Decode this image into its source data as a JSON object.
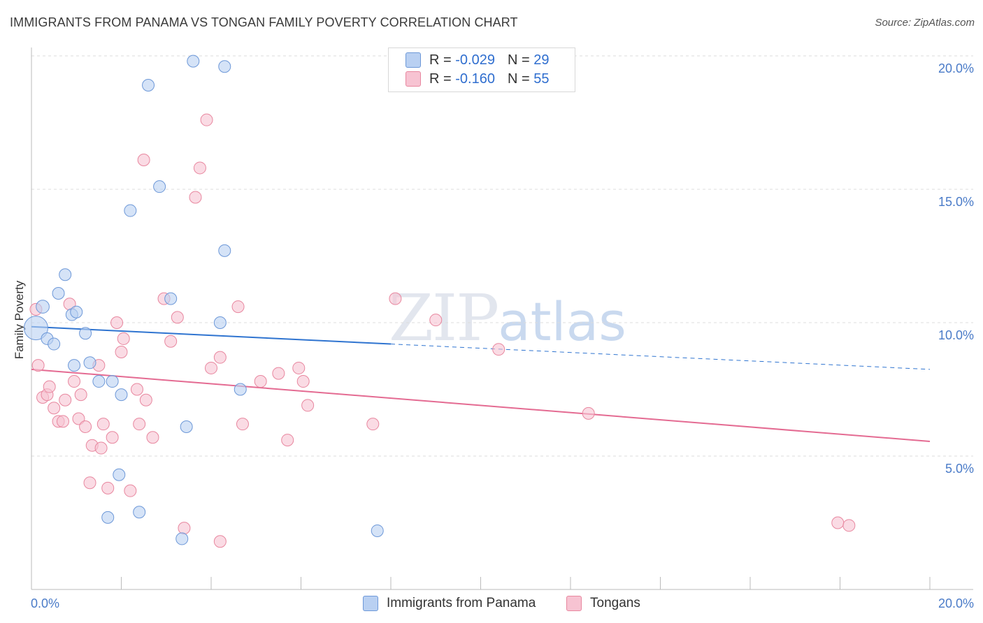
{
  "title": "IMMIGRANTS FROM PANAMA VS TONGAN FAMILY POVERTY CORRELATION CHART",
  "source": "Source: ZipAtlas.com",
  "watermark": {
    "zip": "ZIP",
    "atlas": "atlas"
  },
  "legend": {
    "series1": {
      "r_label": "R = ",
      "r_value": "-0.029",
      "n_label": "N = ",
      "n_value": "29"
    },
    "series2": {
      "r_label": "R = ",
      "r_value": "-0.160",
      "n_label": "N = ",
      "n_value": "55"
    }
  },
  "bottom_legend": {
    "series1": "Immigrants from Panama",
    "series2": "Tongans"
  },
  "colors": {
    "blue_fill": "#b9d0f2",
    "blue_stroke": "#6d98d8",
    "blue_line": "#2f74d0",
    "pink_fill": "#f7c3d2",
    "pink_stroke": "#e8879f",
    "pink_line": "#e46b92",
    "grid": "#dcdcdc",
    "axis": "#bbbbbb",
    "tick_text": "#4a7bc8"
  },
  "chart_data": {
    "type": "scatter",
    "title": "IMMIGRANTS FROM PANAMA VS TONGAN FAMILY POVERTY CORRELATION CHART",
    "xlabel": "",
    "ylabel": "Family Poverty",
    "xlim": [
      0,
      20
    ],
    "ylim": [
      0,
      20.5
    ],
    "x_tick_labels": [
      "0.0%",
      "20.0%"
    ],
    "y_ticks": [
      5,
      10,
      15,
      20
    ],
    "y_tick_labels": [
      "5.0%",
      "10.0%",
      "15.0%",
      "20.0%"
    ],
    "series": [
      {
        "name": "Immigrants from Panama",
        "color": "#6d98d8",
        "points": [
          [
            0.1,
            9.8,
            20
          ],
          [
            0.25,
            10.6,
            11
          ],
          [
            0.35,
            9.4,
            10
          ],
          [
            0.5,
            9.2,
            10
          ],
          [
            0.6,
            11.1,
            10
          ],
          [
            0.75,
            11.8,
            10
          ],
          [
            0.9,
            10.3,
            10
          ],
          [
            1.0,
            10.4,
            10
          ],
          [
            0.95,
            8.4,
            10
          ],
          [
            1.2,
            9.6,
            10
          ],
          [
            1.3,
            8.5,
            10
          ],
          [
            1.5,
            7.8,
            10
          ],
          [
            1.8,
            7.8,
            10
          ],
          [
            2.0,
            7.3,
            10
          ],
          [
            2.2,
            14.2,
            10
          ],
          [
            2.6,
            18.9,
            10
          ],
          [
            2.85,
            15.1,
            10
          ],
          [
            3.1,
            10.9,
            10
          ],
          [
            3.6,
            19.8,
            10
          ],
          [
            4.3,
            19.6,
            10
          ],
          [
            4.3,
            12.7,
            10
          ],
          [
            4.2,
            10.0,
            10
          ],
          [
            4.65,
            7.5,
            10
          ],
          [
            3.45,
            6.1,
            10
          ],
          [
            1.95,
            4.3,
            10
          ],
          [
            1.7,
            2.7,
            10
          ],
          [
            2.4,
            2.9,
            10
          ],
          [
            3.35,
            1.9,
            10
          ],
          [
            7.7,
            2.2,
            10
          ]
        ],
        "trend": {
          "x": [
            0,
            8
          ],
          "y": [
            9.85,
            9.2
          ]
        },
        "trend_dashed": {
          "x": [
            8,
            20
          ],
          "y": [
            9.2,
            8.25
          ]
        }
      },
      {
        "name": "Tongans",
        "color": "#e8879f",
        "points": [
          [
            0.1,
            10.5,
            10
          ],
          [
            0.15,
            8.4,
            10
          ],
          [
            0.25,
            7.2,
            10
          ],
          [
            0.35,
            7.3,
            10
          ],
          [
            0.4,
            7.6,
            10
          ],
          [
            0.5,
            6.8,
            10
          ],
          [
            0.6,
            6.3,
            10
          ],
          [
            0.7,
            6.3,
            10
          ],
          [
            0.75,
            7.1,
            10
          ],
          [
            0.85,
            10.7,
            10
          ],
          [
            0.95,
            7.8,
            10
          ],
          [
            1.05,
            6.4,
            10
          ],
          [
            1.1,
            7.3,
            10
          ],
          [
            1.2,
            6.1,
            10
          ],
          [
            1.35,
            5.4,
            10
          ],
          [
            1.5,
            8.4,
            10
          ],
          [
            1.55,
            5.3,
            10
          ],
          [
            1.6,
            6.2,
            10
          ],
          [
            1.7,
            3.8,
            10
          ],
          [
            1.8,
            5.7,
            10
          ],
          [
            1.9,
            10.0,
            10
          ],
          [
            2.0,
            8.9,
            10
          ],
          [
            2.05,
            9.4,
            10
          ],
          [
            2.2,
            3.7,
            10
          ],
          [
            2.35,
            7.5,
            10
          ],
          [
            2.4,
            6.2,
            10
          ],
          [
            2.55,
            7.1,
            10
          ],
          [
            2.7,
            5.7,
            10
          ],
          [
            2.5,
            16.1,
            10
          ],
          [
            2.95,
            10.9,
            10
          ],
          [
            3.1,
            9.3,
            10
          ],
          [
            3.25,
            10.2,
            10
          ],
          [
            3.4,
            2.3,
            10
          ],
          [
            3.65,
            14.7,
            10
          ],
          [
            3.75,
            15.8,
            10
          ],
          [
            3.9,
            17.6,
            10
          ],
          [
            4.0,
            8.3,
            10
          ],
          [
            4.2,
            1.8,
            10
          ],
          [
            4.2,
            8.7,
            10
          ],
          [
            4.6,
            10.6,
            10
          ],
          [
            4.7,
            6.2,
            10
          ],
          [
            5.1,
            7.8,
            10
          ],
          [
            5.5,
            8.1,
            10
          ],
          [
            5.7,
            5.6,
            10
          ],
          [
            5.95,
            8.3,
            10
          ],
          [
            6.05,
            7.8,
            10
          ],
          [
            6.15,
            6.9,
            10
          ],
          [
            7.6,
            6.2,
            10
          ],
          [
            8.1,
            10.9,
            10
          ],
          [
            9.0,
            10.1,
            10
          ],
          [
            10.4,
            9.0,
            10
          ],
          [
            12.4,
            6.6,
            10
          ],
          [
            17.95,
            2.5,
            10
          ],
          [
            18.2,
            2.4,
            10
          ],
          [
            1.3,
            4.0,
            10
          ]
        ],
        "trend": {
          "x": [
            0,
            20
          ],
          "y": [
            8.25,
            5.55
          ]
        }
      }
    ]
  }
}
